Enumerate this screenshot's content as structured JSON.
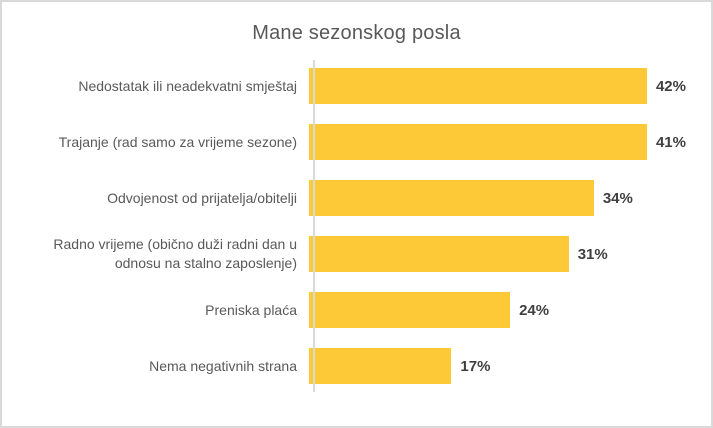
{
  "colors": {
    "bar_color": "#FDC937",
    "title_color": "#595959",
    "label_color": "#595959",
    "value_color": "#404040",
    "axis_color": "#D9D9D9",
    "border_color": "#D9D9D9"
  },
  "chart_data": {
    "type": "bar",
    "orientation": "horizontal",
    "title": "Mane sezonskog posla",
    "categories": [
      "Nedostatak ili neadekvatni smještaj",
      "Trajanje (rad samo za vrijeme sezone)",
      "Odvojenost od prijatelja/obitelji",
      "Radno vrijeme (obično duži radni dan u\nodnosu na stalno zaposlenje)",
      "Preniska plaća",
      "Nema negativnih strana"
    ],
    "values": [
      42,
      41,
      34,
      31,
      24,
      17
    ],
    "value_labels": [
      "42%",
      "41%",
      "34%",
      "31%",
      "24%",
      "17%"
    ],
    "xlabel": "",
    "ylabel": "",
    "xlim": [
      0,
      45
    ],
    "grid": false,
    "legend": false,
    "value_labels_position": "right-of-bar"
  }
}
